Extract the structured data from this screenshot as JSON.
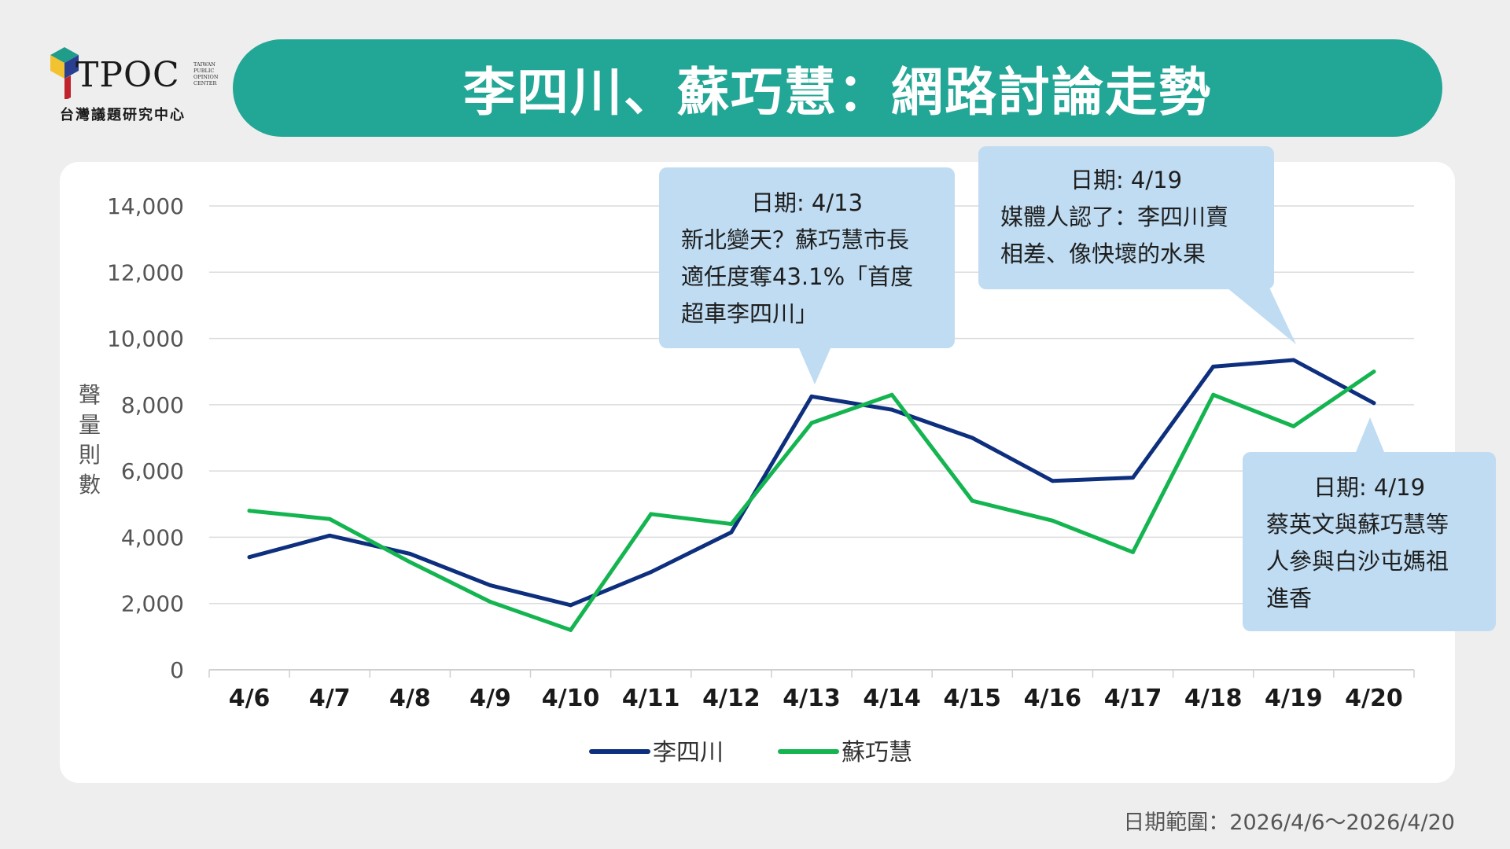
{
  "logo": {
    "brand": "TPOC",
    "sub_en": [
      "TAIWAN",
      "PUBLIC",
      "OPINION",
      "CENTER"
    ],
    "sub_cn": "台灣議題研究中心"
  },
  "title": "李四川、蘇巧慧：網路討論走勢",
  "colors": {
    "accent": "#22a696",
    "series_1": "#0d2f7e",
    "series_2": "#14b550",
    "callout_bg": "#bfdcf2"
  },
  "chart_data": {
    "type": "line",
    "ylabel": "聲量則數",
    "ylim": [
      0,
      14000
    ],
    "yticks": [
      0,
      2000,
      4000,
      6000,
      8000,
      10000,
      12000,
      14000
    ],
    "ytick_labels": [
      "0",
      "2,000",
      "4,000",
      "6,000",
      "8,000",
      "10,000",
      "12,000",
      "14,000"
    ],
    "categories": [
      "4/6",
      "4/7",
      "4/8",
      "4/9",
      "4/10",
      "4/11",
      "4/12",
      "4/13",
      "4/14",
      "4/15",
      "4/16",
      "4/17",
      "4/18",
      "4/19",
      "4/20"
    ],
    "series": [
      {
        "name": "李四川",
        "color": "#0d2f7e",
        "values": [
          3400,
          4050,
          3500,
          2550,
          1950,
          2950,
          4150,
          8250,
          7850,
          7000,
          5700,
          5800,
          9150,
          9350,
          8050
        ]
      },
      {
        "name": "蘇巧慧",
        "color": "#14b550",
        "values": [
          4800,
          4550,
          3250,
          2050,
          1200,
          4700,
          4400,
          7450,
          8300,
          5100,
          4500,
          3550,
          8300,
          7350,
          9000
        ]
      }
    ],
    "legend": "bottom-center",
    "grid": true
  },
  "callouts": [
    {
      "date": "日期: 4/13",
      "lines": [
        "新北變天？蘇巧慧市長",
        "適任度奪43.1%「首度",
        "超車李四川」"
      ]
    },
    {
      "date": "日期: 4/19",
      "lines": [
        "媒體人認了：李四川賣",
        "相差、像快壞的水果"
      ]
    },
    {
      "date": "日期: 4/19",
      "lines": [
        "蔡英文與蘇巧慧等",
        "人參與白沙屯媽祖",
        "進香"
      ]
    }
  ],
  "footer": "日期範圍：2026/4/6～2026/4/20"
}
